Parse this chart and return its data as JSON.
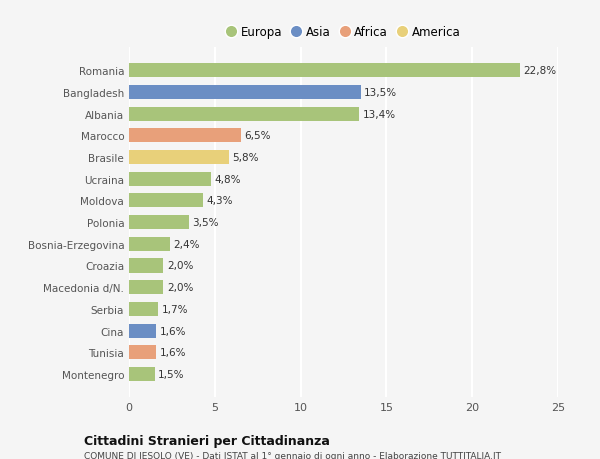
{
  "categories": [
    "Montenegro",
    "Tunisia",
    "Cina",
    "Serbia",
    "Macedonia d/N.",
    "Croazia",
    "Bosnia-Erzegovina",
    "Polonia",
    "Moldova",
    "Ucraina",
    "Brasile",
    "Marocco",
    "Albania",
    "Bangladesh",
    "Romania"
  ],
  "values": [
    1.5,
    1.6,
    1.6,
    1.7,
    2.0,
    2.0,
    2.4,
    3.5,
    4.3,
    4.8,
    5.8,
    6.5,
    13.4,
    13.5,
    22.8
  ],
  "colors": [
    "#a8c47a",
    "#e8a07a",
    "#6b8ec4",
    "#a8c47a",
    "#a8c47a",
    "#a8c47a",
    "#a8c47a",
    "#a8c47a",
    "#a8c47a",
    "#a8c47a",
    "#e8d07a",
    "#e8a07a",
    "#a8c47a",
    "#6b8ec4",
    "#a8c47a"
  ],
  "labels": [
    "1,5%",
    "1,6%",
    "1,6%",
    "1,7%",
    "2,0%",
    "2,0%",
    "2,4%",
    "3,5%",
    "4,3%",
    "4,8%",
    "5,8%",
    "6,5%",
    "13,4%",
    "13,5%",
    "22,8%"
  ],
  "legend": [
    {
      "label": "Europa",
      "color": "#a8c47a"
    },
    {
      "label": "Asia",
      "color": "#6b8ec4"
    },
    {
      "label": "Africa",
      "color": "#e8a07a"
    },
    {
      "label": "America",
      "color": "#e8d07a"
    }
  ],
  "xlim": [
    0,
    25
  ],
  "xticks": [
    0,
    5,
    10,
    15,
    20,
    25
  ],
  "title": "Cittadini Stranieri per Cittadinanza",
  "subtitle": "COMUNE DI JESOLO (VE) - Dati ISTAT al 1° gennaio di ogni anno - Elaborazione TUTTITALIA.IT",
  "bg_color": "#f5f5f5",
  "bar_height": 0.65,
  "grid_color": "#ffffff",
  "axes_bg": "#f5f5f5",
  "label_fontsize": 7.5,
  "ytick_fontsize": 7.5,
  "xtick_fontsize": 8
}
